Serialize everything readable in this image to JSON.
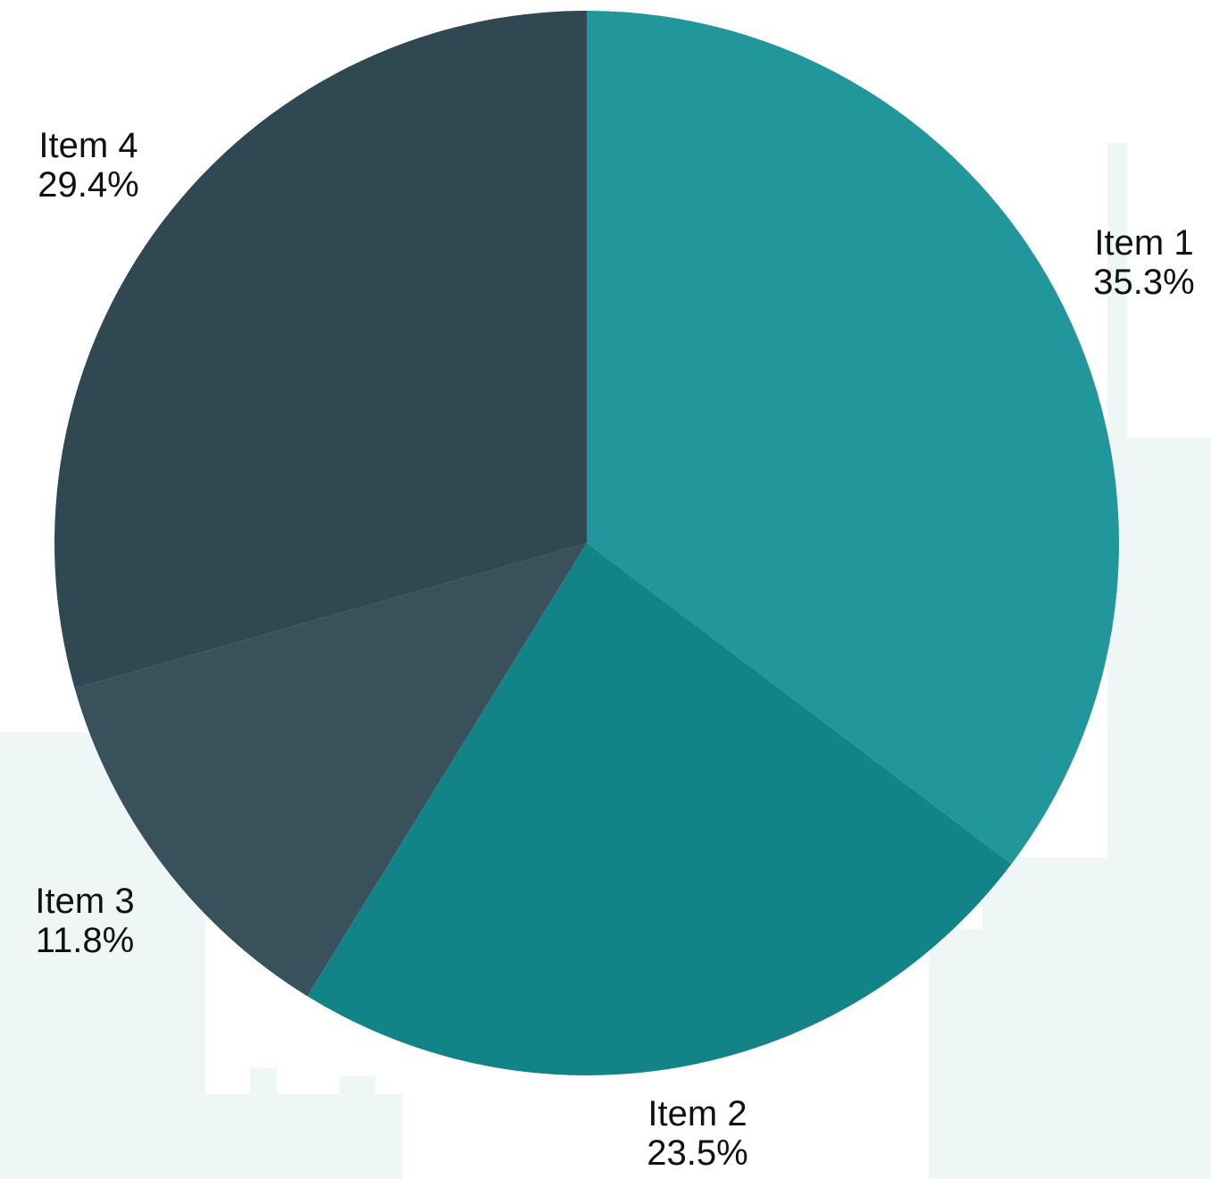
{
  "chart_data": {
    "type": "pie",
    "title": "",
    "start_angle_deg": 0,
    "direction": "clockwise",
    "slices": [
      {
        "label": "Item 1",
        "percent_label": "35.3%",
        "value": 35.3,
        "color": "#21979b"
      },
      {
        "label": "Item 2",
        "percent_label": "23.5%",
        "value": 23.5,
        "color": "#128386"
      },
      {
        "label": "Item 3",
        "percent_label": "11.8%",
        "value": 11.8,
        "color": "#39515b"
      },
      {
        "label": "Item 4",
        "percent_label": "29.4%",
        "value": 29.4,
        "color": "#2f4852"
      }
    ],
    "legend": "none",
    "label_position": "outside"
  },
  "background": {
    "color": "#ffffff",
    "watermark_color": "#eef7f6"
  }
}
